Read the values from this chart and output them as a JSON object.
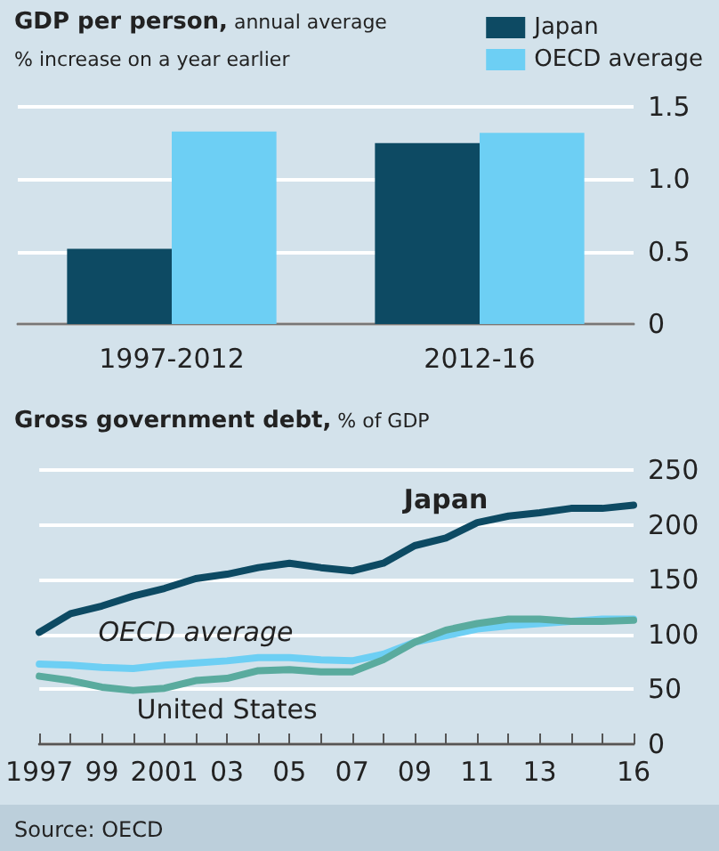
{
  "chart_data": [
    {
      "type": "bar",
      "title": "GDP per person, annual average",
      "subtitle": "% increase on a year earlier",
      "categories": [
        "1997-2012",
        "2012-16"
      ],
      "series": [
        {
          "name": "Japan",
          "color": "#0d4a63",
          "values": [
            0.52,
            1.25
          ]
        },
        {
          "name": "OECD average",
          "color": "#6dcff4",
          "values": [
            1.33,
            1.32
          ]
        }
      ],
      "ylim": [
        0,
        1.5
      ],
      "yticks": [
        0,
        {
          "value": 0.5,
          "label": "0.5"
        },
        {
          "value": 1,
          "label": "1.0"
        },
        1.5
      ],
      "grid": "y",
      "legend": "top right"
    },
    {
      "type": "line",
      "title": "Gross government debt, % of GDP",
      "x": [
        1997,
        1998,
        1999,
        2000,
        2001,
        2002,
        2003,
        2004,
        2005,
        2006,
        2007,
        2008,
        2009,
        2010,
        2011,
        2012,
        2013,
        2014,
        2015,
        2016
      ],
      "series": [
        {
          "name": "Japan",
          "color": "#0d4a63",
          "values": [
            102,
            119,
            126,
            135,
            142,
            151,
            155,
            161,
            165,
            161,
            158,
            165,
            181,
            188,
            202,
            208,
            211,
            215,
            215,
            218
          ]
        },
        {
          "name": "OECD average",
          "color": "#6dcff4",
          "values": [
            73,
            72,
            70,
            69,
            72,
            74,
            76,
            79,
            79,
            77,
            76,
            82,
            93,
            99,
            105,
            108,
            110,
            112,
            114,
            114
          ]
        },
        {
          "name": "United States",
          "color": "#5aab9e",
          "values": [
            62,
            58,
            52,
            49,
            51,
            58,
            60,
            67,
            68,
            66,
            66,
            77,
            93,
            104,
            110,
            114,
            114,
            112,
            112,
            113
          ]
        }
      ],
      "xlim": [
        1997,
        2016
      ],
      "xticks": [
        1997,
        {
          "value": 1998,
          "label": null
        },
        {
          "value": 1999,
          "label": "99"
        },
        {
          "value": 2000,
          "label": null
        },
        2001,
        {
          "value": 2002,
          "label": null
        },
        {
          "value": 2003,
          "label": "03"
        },
        {
          "value": 2004,
          "label": null
        },
        {
          "value": 2005,
          "label": "05"
        },
        {
          "value": 2006,
          "label": null
        },
        {
          "value": 2007,
          "label": "07"
        },
        {
          "value": 2008,
          "label": null
        },
        {
          "value": 2009,
          "label": "09"
        },
        {
          "value": 2010,
          "label": null
        },
        {
          "value": 2011,
          "label": "11"
        },
        {
          "value": 2012,
          "label": null
        },
        {
          "value": 2013,
          "label": "13"
        },
        {
          "value": 2014,
          "label": null
        },
        {
          "value": 2015,
          "label": null
        },
        {
          "value": 2016,
          "label": "16"
        }
      ],
      "ylim": [
        0,
        250
      ],
      "yticks": [
        0,
        50,
        100,
        150,
        200,
        250
      ],
      "grid": "y",
      "legend": false,
      "marker": "none",
      "line_style": "solid",
      "annotations": [
        "Source: OECD"
      ]
    }
  ]
}
